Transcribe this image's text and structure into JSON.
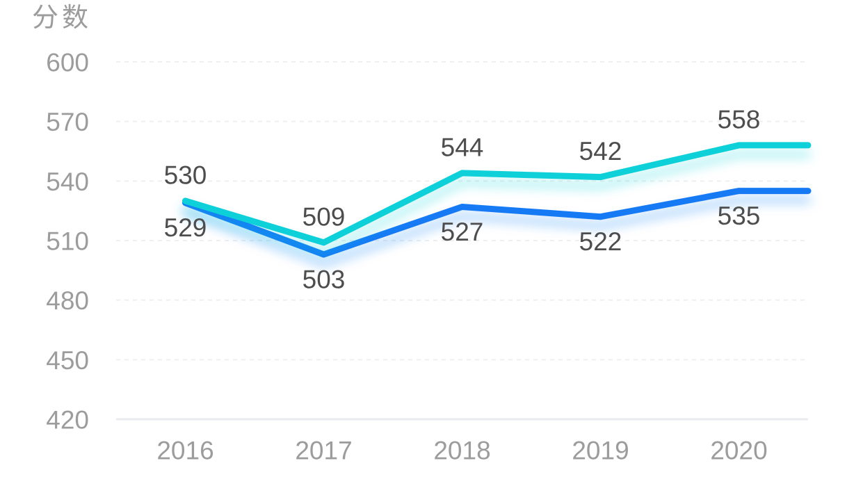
{
  "chart_data": {
    "type": "line",
    "title": "",
    "ylabel": "分数",
    "xlabel": "",
    "categories": [
      "2016",
      "2017",
      "2018",
      "2019",
      "2020"
    ],
    "series": [
      {
        "color": "#0fd0d8",
        "values": [
          530,
          509,
          544,
          542,
          558
        ],
        "label_position": "above"
      },
      {
        "color": "#187af5",
        "values": [
          529,
          503,
          527,
          522,
          535
        ],
        "label_position": "below"
      }
    ],
    "yticks": [
      600,
      570,
      540,
      510,
      480,
      450,
      420
    ],
    "ylim": [
      420,
      600
    ],
    "grid": "horizontal-dashed",
    "legend": "none",
    "markers": "none",
    "line_extends_past_last_point": true
  },
  "style": {
    "background": "#ffffff",
    "axis_label_color": "#9c9c9c",
    "data_label_color": "#4d4d4d",
    "grid_line_color": "#efefef",
    "axis_line_color": "#e9ebee"
  }
}
